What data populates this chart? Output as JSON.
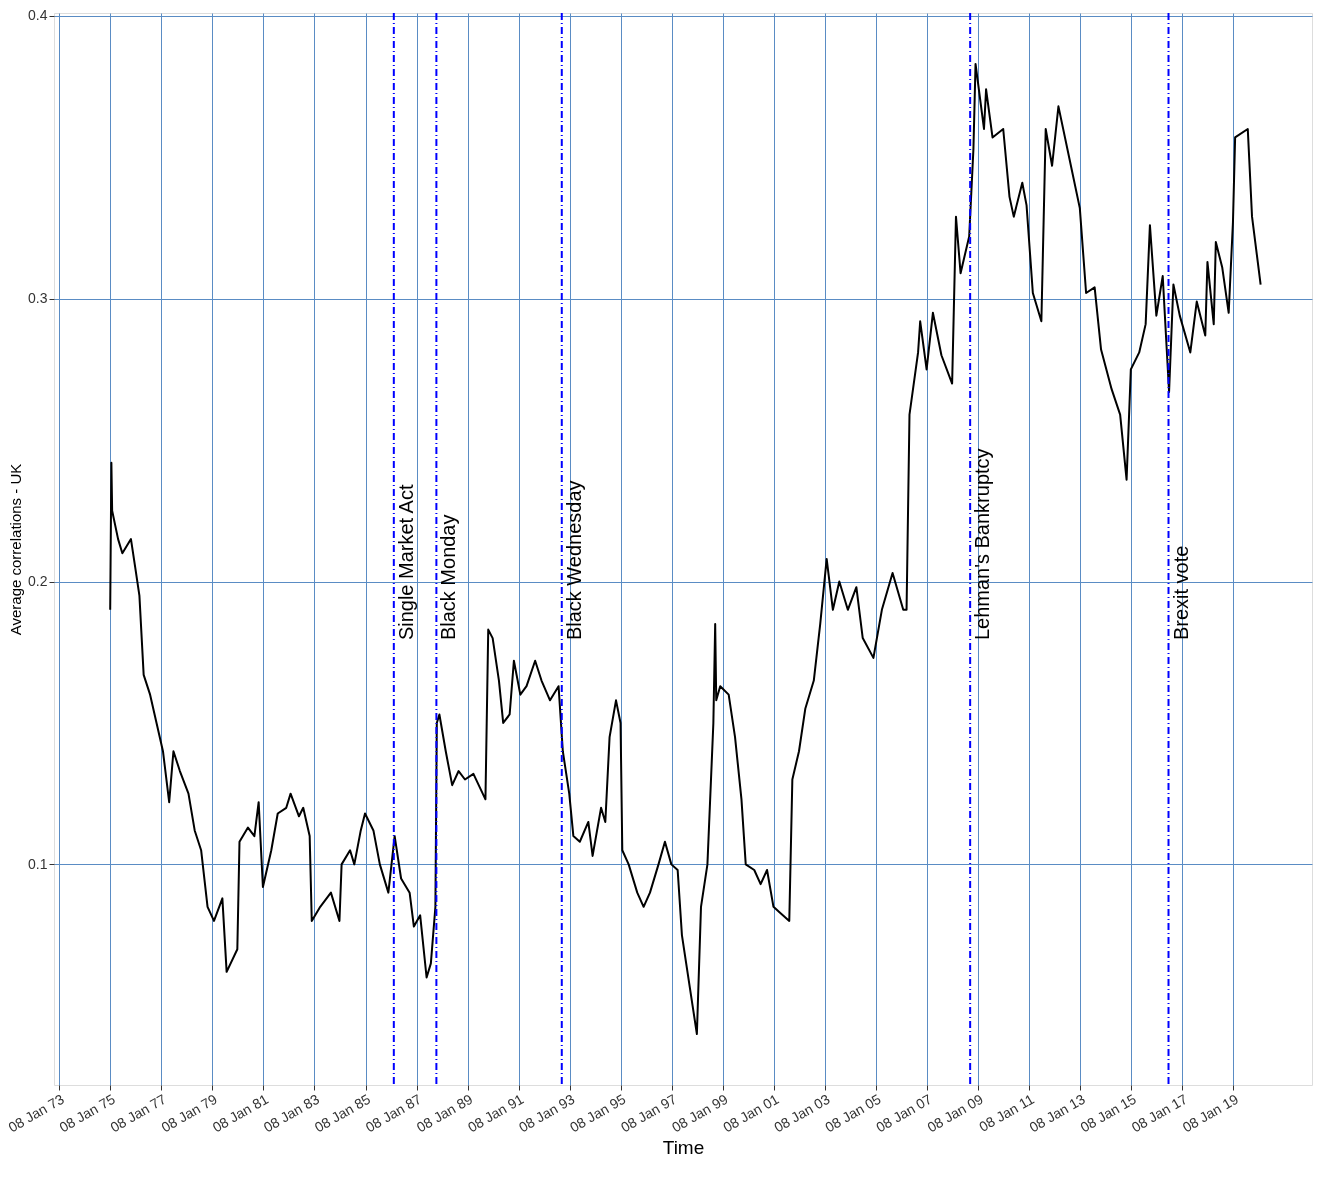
{
  "chart_data": {
    "type": "line",
    "xlabel": "Time",
    "ylabel": "Average correlations - UK",
    "x": [
      "1975-01-08",
      "1975-01-25",
      "1975-02-05",
      "1975-05-01",
      "1975-07-01",
      "1975-11-01",
      "1976-01-01",
      "1976-03-01",
      "1976-05-01",
      "1976-08-01",
      "1976-11-01",
      "1977-02-01",
      "1977-05-01",
      "1977-07-01",
      "1977-10-01",
      "1978-02-01",
      "1978-05-01",
      "1978-08-01",
      "1978-11-01",
      "1979-02-01",
      "1979-06-01",
      "1979-08-01",
      "1980-01-01",
      "1980-02-01",
      "1980-06-01",
      "1980-09-01",
      "1980-11-01",
      "1981-01-01",
      "1981-05-01",
      "1981-08-01",
      "1981-12-01",
      "1982-02-01",
      "1982-06-01",
      "1982-08-01",
      "1982-11-01",
      "1982-12-01",
      "1983-04-01",
      "1983-09-01",
      "1984-01-01",
      "1984-02-01",
      "1984-06-01",
      "1984-08-01",
      "1984-11-01",
      "1985-01-01",
      "1985-05-01",
      "1985-08-01",
      "1985-12-01",
      "1986-03-01",
      "1986-06-01",
      "1986-10-01",
      "1986-12-01",
      "1987-03-01",
      "1987-06-01",
      "1987-08-01",
      "1987-10-05",
      "1987-10-25",
      "1987-12-01",
      "1988-03-01",
      "1988-06-01",
      "1988-09-01",
      "1988-12-01",
      "1989-04-01",
      "1989-09-20",
      "1989-10-30",
      "1990-01-01",
      "1990-04-01",
      "1990-06-01",
      "1990-09-01",
      "1990-11-01",
      "1991-02-01",
      "1991-05-01",
      "1991-09-01",
      "1991-12-01",
      "1992-04-01",
      "1992-08-01",
      "1992-10-01",
      "1993-01-01",
      "1993-03-01",
      "1993-06-01",
      "1993-10-01",
      "1993-12-01",
      "1994-04-01",
      "1994-06-01",
      "1994-08-01",
      "1994-11-01",
      "1995-01-05",
      "1995-01-30",
      "1995-05-01",
      "1995-09-01",
      "1995-12-01",
      "1996-03-01",
      "1996-07-01",
      "1996-10-01",
      "1997-01-01",
      "1997-04-01",
      "1997-06-01",
      "1997-08-01",
      "1997-11-01",
      "1998-01-01",
      "1998-03-01",
      "1998-06-01",
      "1998-08-25",
      "1998-09-20",
      "1998-10-05",
      "1998-12-01",
      "1999-04-01",
      "1999-07-01",
      "1999-10-01",
      "1999-12-01",
      "2000-04-01",
      "2000-07-01",
      "2000-10-01",
      "2001-01-01",
      "2001-04-01",
      "2001-08-15",
      "2001-09-28",
      "2002-01-01",
      "2002-04-01",
      "2002-08-01",
      "2002-11-01",
      "2003-02-01",
      "2003-05-01",
      "2003-08-01",
      "2003-12-01",
      "2004-04-01",
      "2004-07-01",
      "2004-12-01",
      "2005-04-01",
      "2005-09-01",
      "2006-02-01",
      "2006-03-20",
      "2006-05-01",
      "2006-09-01",
      "2006-10-01",
      "2007-01-01",
      "2007-04-01",
      "2007-08-01",
      "2008-01-01",
      "2008-02-25",
      "2008-05-01",
      "2008-09-01",
      "2008-11-01",
      "2008-12-01",
      "2009-04-01",
      "2009-05-01",
      "2009-08-01",
      "2010-01-01",
      "2010-04-01",
      "2010-06-01",
      "2010-10-01",
      "2010-12-01",
      "2011-03-01",
      "2011-07-01",
      "2011-09-01",
      "2011-12-01",
      "2012-03-01",
      "2012-08-01",
      "2013-01-01",
      "2013-04-01",
      "2013-08-01",
      "2013-11-01",
      "2014-04-01",
      "2014-08-01",
      "2014-11-01",
      "2015-01-01",
      "2015-05-01",
      "2015-08-01",
      "2015-10-01",
      "2016-01-01",
      "2016-04-01",
      "2016-07-01",
      "2016-09-01",
      "2016-12-01",
      "2017-05-01",
      "2017-08-01",
      "2017-12-01",
      "2018-01-01",
      "2018-04-01",
      "2018-05-01",
      "2018-08-01",
      "2018-11-01",
      "2019-01-01",
      "2019-02-01",
      "2019-08-01",
      "2019-10-01",
      "2020-02-01"
    ],
    "series": [
      {
        "color": "#000000",
        "values": [
          0.19,
          0.242,
          0.225,
          0.215,
          0.21,
          0.215,
          0.205,
          0.195,
          0.167,
          0.16,
          0.15,
          0.14,
          0.122,
          0.14,
          0.133,
          0.125,
          0.112,
          0.105,
          0.085,
          0.08,
          0.088,
          0.062,
          0.07,
          0.108,
          0.113,
          0.11,
          0.122,
          0.092,
          0.105,
          0.118,
          0.12,
          0.125,
          0.117,
          0.12,
          0.11,
          0.08,
          0.085,
          0.09,
          0.08,
          0.1,
          0.105,
          0.1,
          0.112,
          0.118,
          0.112,
          0.1,
          0.09,
          0.11,
          0.095,
          0.09,
          0.078,
          0.082,
          0.06,
          0.065,
          0.085,
          0.15,
          0.153,
          0.14,
          0.128,
          0.133,
          0.13,
          0.132,
          0.123,
          0.183,
          0.18,
          0.165,
          0.15,
          0.153,
          0.172,
          0.16,
          0.163,
          0.172,
          0.165,
          0.158,
          0.163,
          0.14,
          0.125,
          0.11,
          0.108,
          0.115,
          0.103,
          0.12,
          0.115,
          0.145,
          0.158,
          0.15,
          0.105,
          0.1,
          0.09,
          0.085,
          0.09,
          0.1,
          0.108,
          0.1,
          0.098,
          0.075,
          0.065,
          0.05,
          0.04,
          0.085,
          0.1,
          0.15,
          0.185,
          0.158,
          0.163,
          0.16,
          0.145,
          0.123,
          0.1,
          0.098,
          0.093,
          0.098,
          0.085,
          0.083,
          0.08,
          0.13,
          0.14,
          0.155,
          0.165,
          0.185,
          0.208,
          0.19,
          0.2,
          0.19,
          0.198,
          0.18,
          0.173,
          0.19,
          0.203,
          0.19,
          0.19,
          0.259,
          0.281,
          0.292,
          0.275,
          0.295,
          0.28,
          0.27,
          0.329,
          0.309,
          0.322,
          0.353,
          0.383,
          0.36,
          0.374,
          0.357,
          0.36,
          0.336,
          0.329,
          0.341,
          0.333,
          0.302,
          0.292,
          0.36,
          0.347,
          0.368,
          0.35,
          0.332,
          0.302,
          0.304,
          0.282,
          0.268,
          0.259,
          0.236,
          0.275,
          0.281,
          0.291,
          0.326,
          0.294,
          0.308,
          0.267,
          0.305,
          0.294,
          0.281,
          0.299,
          0.287,
          0.313,
          0.291,
          0.32,
          0.311,
          0.295,
          0.327,
          0.357,
          0.36,
          0.329,
          0.305
        ]
      }
    ],
    "xlim": [
      "1972-10-26",
      "2022-02-05"
    ],
    "xticks": [
      {
        "value": "1973-01-08",
        "label": "08 Jan 73"
      },
      {
        "value": "1975-01-08",
        "label": "08 Jan 75"
      },
      {
        "value": "1977-01-08",
        "label": "08 Jan 77"
      },
      {
        "value": "1979-01-08",
        "label": "08 Jan 79"
      },
      {
        "value": "1981-01-08",
        "label": "08 Jan 81"
      },
      {
        "value": "1983-01-08",
        "label": "08 Jan 83"
      },
      {
        "value": "1985-01-08",
        "label": "08 Jan 85"
      },
      {
        "value": "1987-01-08",
        "label": "08 Jan 87"
      },
      {
        "value": "1989-01-08",
        "label": "08 Jan 89"
      },
      {
        "value": "1991-01-08",
        "label": "08 Jan 91"
      },
      {
        "value": "1993-01-08",
        "label": "08 Jan 93"
      },
      {
        "value": "1995-01-08",
        "label": "08 Jan 95"
      },
      {
        "value": "1997-01-08",
        "label": "08 Jan 97"
      },
      {
        "value": "1999-01-08",
        "label": "08 Jan 99"
      },
      {
        "value": "2001-01-08",
        "label": "08 Jan 01"
      },
      {
        "value": "2003-01-08",
        "label": "08 Jan 03"
      },
      {
        "value": "2005-01-08",
        "label": "08 Jan 05"
      },
      {
        "value": "2007-01-08",
        "label": "08 Jan 07"
      },
      {
        "value": "2009-01-08",
        "label": "08 Jan 09"
      },
      {
        "value": "2011-01-08",
        "label": "08 Jan 11"
      },
      {
        "value": "2013-01-08",
        "label": "08 Jan 13"
      },
      {
        "value": "2015-01-08",
        "label": "08 Jan 15"
      },
      {
        "value": "2017-01-08",
        "label": "08 Jan 17"
      },
      {
        "value": "2019-01-08",
        "label": "08 Jan 19"
      }
    ],
    "ylim": [
      0.022,
      0.401
    ],
    "yticks": [
      0.1,
      0.2,
      0.3,
      0.4
    ],
    "grid": true,
    "ref_lines": [
      {
        "axis": "x",
        "value": "1986-02-17",
        "label": "Single Market Act",
        "color": "#0000ff",
        "line_style": "dashed"
      },
      {
        "axis": "x",
        "value": "1987-10-19",
        "label": "Black Monday",
        "color": "#0000ff",
        "line_style": "dashed"
      },
      {
        "axis": "x",
        "value": "1992-09-16",
        "label": "Black Wednesday",
        "color": "#0000ff",
        "line_style": "dashed"
      },
      {
        "axis": "x",
        "value": "2008-09-15",
        "label": "Lehman's Bankruptcy",
        "color": "#0000ff",
        "line_style": "dashed"
      },
      {
        "axis": "x",
        "value": "2016-06-23",
        "label": "Brexit vote",
        "color": "#0000ff",
        "line_style": "dashed"
      }
    ]
  }
}
